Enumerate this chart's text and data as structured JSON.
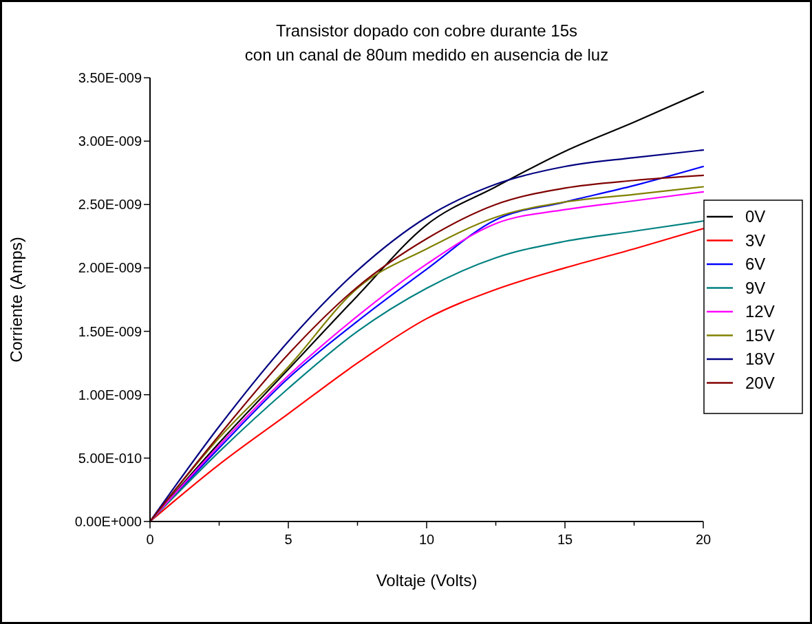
{
  "chart_data": {
    "type": "line",
    "title": "Transistor dopado con cobre durante 15s\ncon un canal de 80um medido en ausencia de luz",
    "xlabel": "Voltaje (Volts)",
    "ylabel": "Corriente (Amps)",
    "x": [
      0,
      2.5,
      5,
      7.5,
      10,
      12.5,
      15,
      17.5,
      20
    ],
    "xlim": [
      0,
      20
    ],
    "xticks": [
      0,
      {
        "value": 2.5,
        "label": null
      },
      5,
      {
        "value": 7.5,
        "label": null
      },
      10,
      {
        "value": 12.5,
        "label": null
      },
      15,
      {
        "value": 17.5,
        "label": null
      },
      20
    ],
    "ylim": [
      0,
      3.5e-09
    ],
    "yticks": [
      {
        "value": 0,
        "label": "0.00E+000"
      },
      {
        "value": 5e-10,
        "label": "5.00E-010"
      },
      {
        "value": 1e-09,
        "label": "1.00E-009"
      },
      {
        "value": 1.5e-09,
        "label": "1.50E-009"
      },
      {
        "value": 2e-09,
        "label": "2.00E-009"
      },
      {
        "value": 2.5e-09,
        "label": "2.50E-009"
      },
      {
        "value": 3e-09,
        "label": "3.00E-009"
      },
      {
        "value": 3.5e-09,
        "label": "3.50E-009"
      }
    ],
    "grid": false,
    "legend": "right",
    "marker": "none",
    "line_style": "solid",
    "series": [
      {
        "name": "0V",
        "color": "#000000",
        "values": [
          0,
          6.2e-10,
          1.2e-09,
          1.78e-09,
          2.34e-09,
          2.64e-09,
          2.92e-09,
          3.15e-09,
          3.39e-09
        ]
      },
      {
        "name": "3V",
        "color": "#ff0000",
        "values": [
          0,
          4.5e-10,
          8.5e-10,
          1.25e-09,
          1.6e-09,
          1.83e-09,
          2e-09,
          2.15e-09,
          2.31e-09
        ]
      },
      {
        "name": "6V",
        "color": "#0000ff",
        "values": [
          0,
          5.8e-10,
          1.13e-09,
          1.58e-09,
          1.99e-09,
          2.38e-09,
          2.52e-09,
          2.65e-09,
          2.8e-09
        ]
      },
      {
        "name": "9V",
        "color": "#008080",
        "values": [
          0,
          5.5e-10,
          1.05e-09,
          1.5e-09,
          1.84e-09,
          2.08e-09,
          2.21e-09,
          2.29e-09,
          2.37e-09
        ]
      },
      {
        "name": "12V",
        "color": "#ff00ff",
        "values": [
          0,
          6e-10,
          1.15e-09,
          1.62e-09,
          2.03e-09,
          2.35e-09,
          2.46e-09,
          2.53e-09,
          2.6e-09
        ]
      },
      {
        "name": "15V",
        "color": "#808000",
        "values": [
          0,
          6.6e-10,
          1.22e-09,
          1.84e-09,
          2.15e-09,
          2.4e-09,
          2.52e-09,
          2.58e-09,
          2.64e-09
        ]
      },
      {
        "name": "18V",
        "color": "#000080",
        "values": [
          0,
          7.5e-10,
          1.42e-09,
          1.98e-09,
          2.4e-09,
          2.66e-09,
          2.8e-09,
          2.87e-09,
          2.93e-09
        ]
      },
      {
        "name": "20V",
        "color": "#800000",
        "values": [
          0,
          6.8e-10,
          1.32e-09,
          1.85e-09,
          2.23e-09,
          2.5e-09,
          2.63e-09,
          2.69e-09,
          2.73e-09
        ]
      }
    ]
  }
}
